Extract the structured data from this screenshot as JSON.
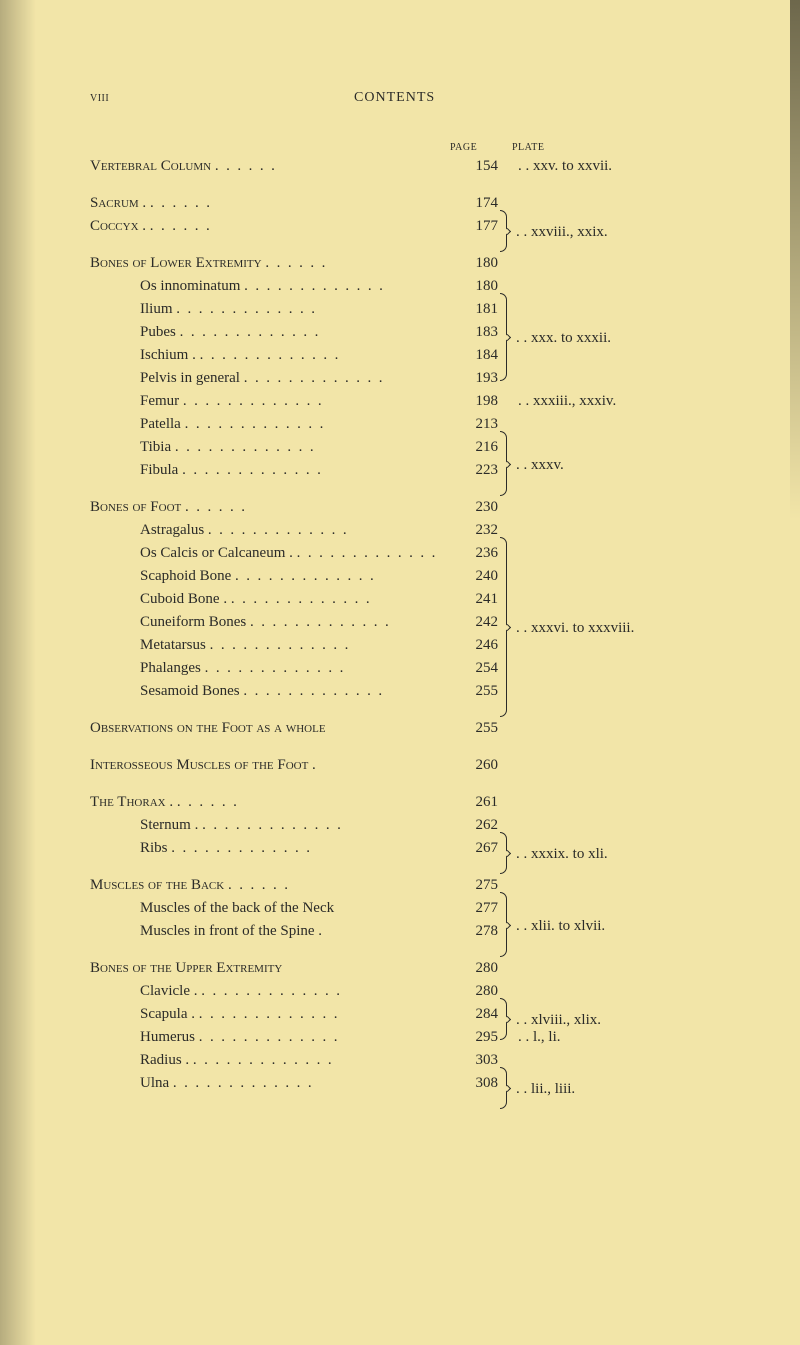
{
  "runningHead": {
    "left": "viii",
    "center": "CONTENTS"
  },
  "columnHeaders": {
    "page": "page",
    "plate": "plate"
  },
  "entries": [
    {
      "label": "Vertebral Column",
      "caps": true,
      "indent": 0,
      "page": "154",
      "plate": ". . xxv. to xxvii.",
      "brace": null
    },
    {
      "gap": true
    },
    {
      "label": "Sacrum .",
      "caps": true,
      "indent": 0,
      "page": "174",
      "braceStart": 2,
      "plateMid": ". . xxviii., xxix."
    },
    {
      "label": "Coccyx .",
      "caps": true,
      "indent": 0,
      "page": "177"
    },
    {
      "gap": true
    },
    {
      "label": "Bones of Lower Extremity",
      "caps": true,
      "indent": 0,
      "page": "180"
    },
    {
      "label": "Os innominatum",
      "indent": 1,
      "page": "180",
      "braceStart": 4,
      "plateMid": ". . xxx. to xxxii."
    },
    {
      "label": "Ilium",
      "indent": 1,
      "page": "181"
    },
    {
      "label": "Pubes",
      "indent": 1,
      "page": "183"
    },
    {
      "label": "Ischium .",
      "indent": 1,
      "page": "184"
    },
    {
      "label": "Pelvis in general",
      "indent": 1,
      "page": "193"
    },
    {
      "label": "Femur",
      "indent": 1,
      "page": "198",
      "plate": ". . xxxiii., xxxiv."
    },
    {
      "label": "Patella",
      "indent": 1,
      "page": "213",
      "braceStart": 3,
      "plateMid": ". . xxxv."
    },
    {
      "label": "Tibia",
      "indent": 1,
      "page": "216"
    },
    {
      "label": "Fibula",
      "indent": 1,
      "page": "223"
    },
    {
      "gap": true
    },
    {
      "label": "Bones of Foot",
      "caps": true,
      "indent": 0,
      "page": "230"
    },
    {
      "label": "Astragalus",
      "indent": 1,
      "page": "232",
      "braceStart": 8,
      "plateMid": ". . xxxvi. to xxxviii."
    },
    {
      "label": "Os Calcis or Calcaneum .",
      "indent": 1,
      "page": "236"
    },
    {
      "label": "Scaphoid Bone",
      "indent": 1,
      "page": "240"
    },
    {
      "label": "Cuboid Bone .",
      "indent": 1,
      "page": "241"
    },
    {
      "label": "Cuneiform Bones",
      "indent": 1,
      "page": "242"
    },
    {
      "label": "Metatarsus",
      "indent": 1,
      "page": "246"
    },
    {
      "label": "Phalanges",
      "indent": 1,
      "page": "254"
    },
    {
      "label": "Sesamoid Bones",
      "indent": 1,
      "page": "255"
    },
    {
      "gap": true
    },
    {
      "label": "Observations on the Foot as a whole",
      "caps": true,
      "indent": 0,
      "page": "255",
      "nodots": true
    },
    {
      "gap": true
    },
    {
      "label": "Interosseous Muscles of the Foot .",
      "caps": true,
      "indent": 0,
      "page": "260",
      "nodots": true
    },
    {
      "gap": true
    },
    {
      "label": "The Thorax .",
      "caps": true,
      "indent": 0,
      "page": "261"
    },
    {
      "label": "Sternum .",
      "indent": 1,
      "page": "262",
      "braceStart": 2,
      "plateMid": ". . xxxix. to xli."
    },
    {
      "label": "Ribs",
      "indent": 1,
      "page": "267"
    },
    {
      "gap": true
    },
    {
      "label": "Muscles of the Back",
      "caps": true,
      "indent": 0,
      "page": "275",
      "braceStart": 3,
      "plateMid": ". . xlii. to xlvii."
    },
    {
      "label": "Muscles of the back of the Neck",
      "indent": 1,
      "page": "277",
      "nodots": true
    },
    {
      "label": "Muscles in front of the Spine .",
      "indent": 1,
      "page": "278",
      "nodots": true
    },
    {
      "gap": true
    },
    {
      "label": "Bones of the Upper Extremity",
      "caps": true,
      "indent": 0,
      "page": "280",
      "nodots": true
    },
    {
      "label": "Clavicle .",
      "indent": 1,
      "page": "280",
      "braceStart": 2,
      "plateMid": ". . xlviii., xlix."
    },
    {
      "label": "Scapula .",
      "indent": 1,
      "page": "284"
    },
    {
      "label": "Humerus",
      "indent": 1,
      "page": "295",
      "plate": ". . l., li."
    },
    {
      "label": "Radius .",
      "indent": 1,
      "page": "303",
      "braceStart": 2,
      "plateMid": ". . lii., liii."
    },
    {
      "label": "Ulna",
      "indent": 1,
      "page": "308"
    }
  ],
  "style": {
    "lineHeight": 23,
    "background": "#f2e5a8",
    "text": "#2b2b28"
  }
}
